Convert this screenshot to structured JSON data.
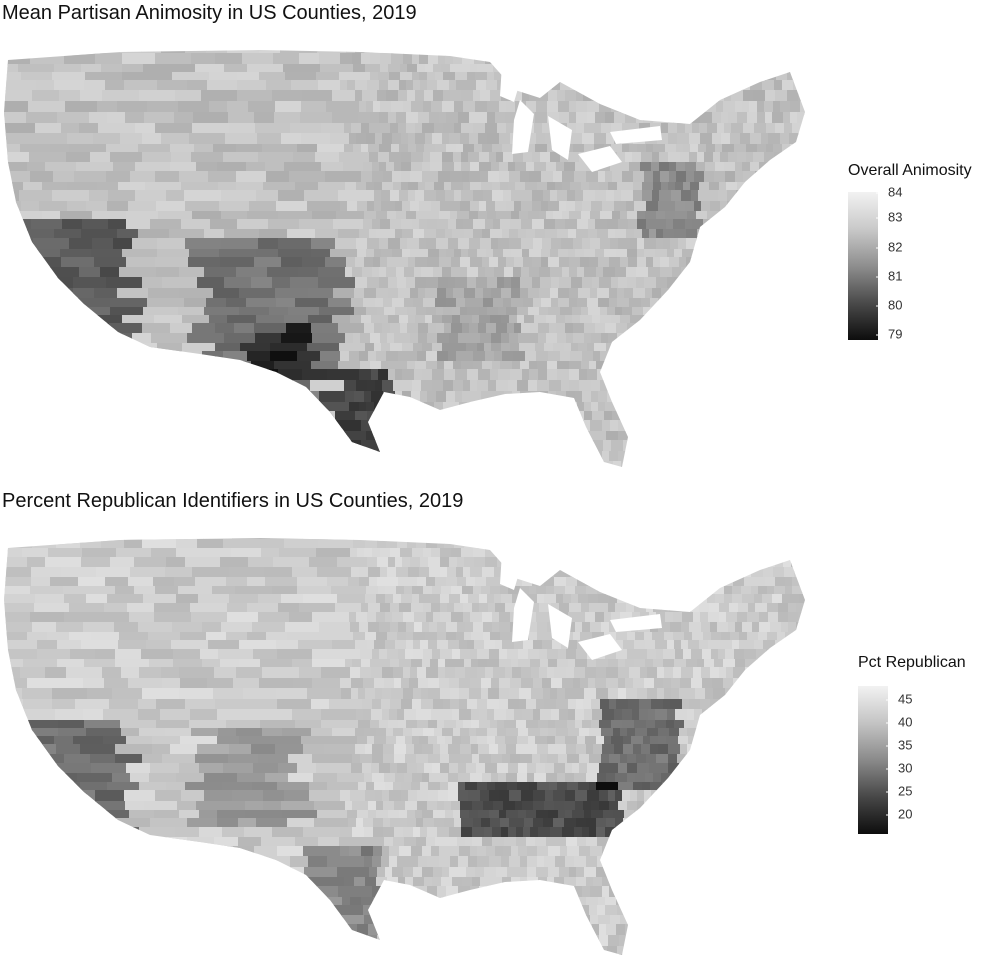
{
  "panels": [
    {
      "title": "Mean Partisan Animosity in US Counties, 2019",
      "legend": {
        "title": "Overall Animosity",
        "ticks": [
          "84",
          "83",
          "82",
          "81",
          "80",
          "79"
        ],
        "range": [
          79,
          84
        ]
      }
    },
    {
      "title": "Percent Republican Identifiers in US Counties, 2019",
      "legend": {
        "title": "Pct Republican",
        "ticks": [
          "45",
          "40",
          "35",
          "30",
          "25",
          "20"
        ],
        "range": [
          18,
          47
        ]
      }
    }
  ],
  "colors": {
    "scale_light": "#f2f2f2",
    "scale_dark": "#0d0d0d",
    "background": "#ffffff"
  }
}
